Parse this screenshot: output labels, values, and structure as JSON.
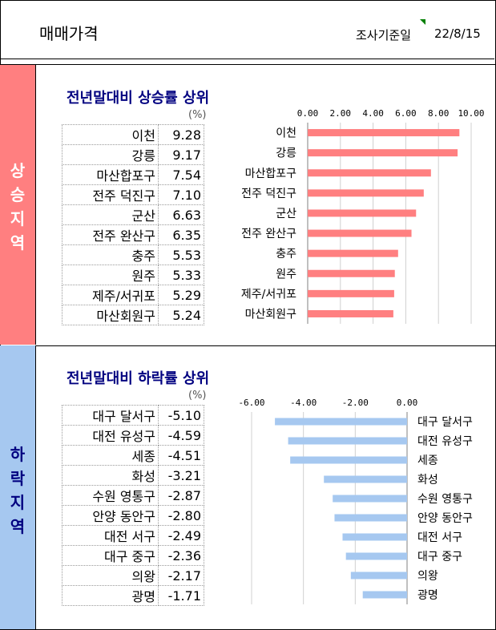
{
  "header": {
    "title": "매매가격",
    "reference_label": "조사기준일",
    "date": "22/8/15"
  },
  "sections": {
    "up": {
      "band_label": [
        "상",
        "승",
        "지",
        "역"
      ],
      "title": "전년말대비 상승률 상위",
      "unit": "(%)",
      "rows": [
        {
          "name": "이천",
          "value": "9.28"
        },
        {
          "name": "강릉",
          "value": "9.17"
        },
        {
          "name": "마산합포구",
          "value": "7.54"
        },
        {
          "name": "전주 덕진구",
          "value": "7.10"
        },
        {
          "name": "군산",
          "value": "6.63"
        },
        {
          "name": "전주 완산구",
          "value": "6.35"
        },
        {
          "name": "충주",
          "value": "5.53"
        },
        {
          "name": "원주",
          "value": "5.33"
        },
        {
          "name": "제주/서귀포",
          "value": "5.29"
        },
        {
          "name": "마산회원구",
          "value": "5.24"
        }
      ]
    },
    "down": {
      "band_label": [
        "하",
        "락",
        "지",
        "역"
      ],
      "title": "전년말대비 하락률 상위",
      "unit": "(%)",
      "rows": [
        {
          "name": "대구 달서구",
          "value": "-5.10"
        },
        {
          "name": "대전 유성구",
          "value": "-4.59"
        },
        {
          "name": "세종",
          "value": "-4.51"
        },
        {
          "name": "화성",
          "value": "-3.21"
        },
        {
          "name": "수원 영통구",
          "value": "-2.87"
        },
        {
          "name": "안양 동안구",
          "value": "-2.80"
        },
        {
          "name": "대전 서구",
          "value": "-2.49"
        },
        {
          "name": "대구 중구",
          "value": "-2.36"
        },
        {
          "name": "의왕",
          "value": "-2.17"
        },
        {
          "name": "광명",
          "value": "-1.71"
        }
      ]
    }
  },
  "chart_data": [
    {
      "type": "bar",
      "orientation": "horizontal",
      "categories": [
        "이천",
        "강릉",
        "마산합포구",
        "전주 덕진구",
        "군산",
        "전주 완산구",
        "충주",
        "원주",
        "제주/서귀포",
        "마산회원구"
      ],
      "values": [
        9.28,
        9.17,
        7.54,
        7.1,
        6.63,
        6.35,
        5.53,
        5.33,
        5.29,
        5.24
      ],
      "xlim": [
        0,
        10
      ],
      "ticks": [
        "0.00",
        "2.00",
        "4.00",
        "6.00",
        "8.00",
        "10.00"
      ],
      "tick_values": [
        0,
        2,
        4,
        6,
        8,
        10
      ],
      "axis_position": "top",
      "grid": true,
      "bar_color": "#ff7f80"
    },
    {
      "type": "bar",
      "orientation": "horizontal",
      "categories": [
        "대구 달서구",
        "대전 유성구",
        "세종",
        "화성",
        "수원 영통구",
        "안양 동안구",
        "대전 서구",
        "대구 중구",
        "의왕",
        "광명"
      ],
      "values": [
        -5.1,
        -4.59,
        -4.51,
        -3.21,
        -2.87,
        -2.8,
        -2.49,
        -2.36,
        -2.17,
        -1.71
      ],
      "xlim": [
        -6,
        0
      ],
      "ticks": [
        "-6.00",
        "-4.00",
        "-2.00",
        "0.00"
      ],
      "tick_values": [
        -6,
        -4,
        -2,
        0
      ],
      "axis_position": "top",
      "grid": true,
      "bar_color": "#a6c8f0"
    }
  ]
}
